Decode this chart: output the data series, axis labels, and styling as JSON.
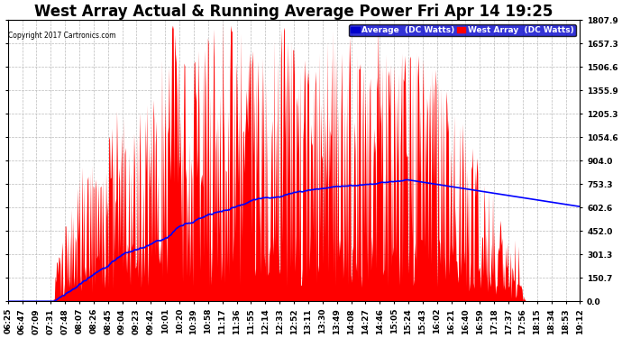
{
  "title": "West Array Actual & Running Average Power Fri Apr 14 19:25",
  "copyright": "Copyright 2017 Cartronics.com",
  "legend_average": "Average  (DC Watts)",
  "legend_west": "West Array  (DC Watts)",
  "yticks": [
    0.0,
    150.7,
    301.3,
    452.0,
    602.6,
    753.3,
    904.0,
    1054.6,
    1205.3,
    1355.9,
    1506.6,
    1657.3,
    1807.9
  ],
  "ymax": 1807.9,
  "ymin": 0.0,
  "fill_color": "#FF0000",
  "avg_line_color": "#0000FF",
  "background_color": "#FFFFFF",
  "plot_bg_color": "#FFFFFF",
  "grid_color": "#BBBBBB",
  "title_fontsize": 12,
  "tick_fontsize": 6.5,
  "xtick_rotation": 90,
  "figsize": [
    6.9,
    3.75
  ],
  "dpi": 100,
  "xtick_labels": [
    "06:25",
    "06:47",
    "07:09",
    "07:31",
    "07:48",
    "08:07",
    "08:26",
    "08:45",
    "09:04",
    "09:23",
    "09:42",
    "10:01",
    "10:20",
    "10:39",
    "10:58",
    "11:17",
    "11:36",
    "11:55",
    "12:14",
    "12:33",
    "12:52",
    "13:11",
    "13:30",
    "13:49",
    "14:08",
    "14:27",
    "14:46",
    "15:05",
    "15:24",
    "15:43",
    "16:02",
    "16:21",
    "16:40",
    "16:59",
    "17:18",
    "17:37",
    "17:56",
    "18:15",
    "18:34",
    "18:53",
    "19:12"
  ]
}
